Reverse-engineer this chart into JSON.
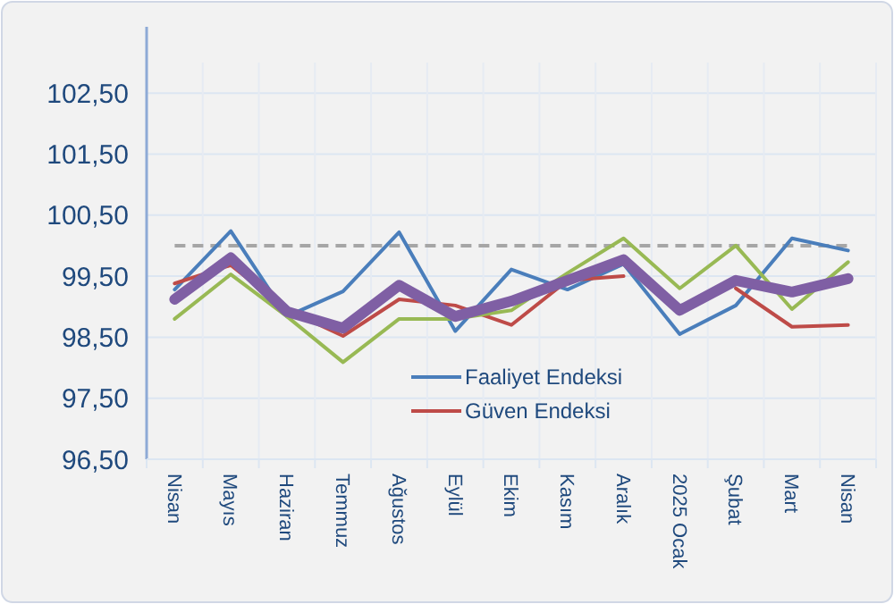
{
  "chart_data": {
    "type": "line",
    "categories": [
      "Nisan",
      "Mayıs",
      "Haziran",
      "Temmuz",
      "Ağustos",
      "Eylül",
      "Ekim",
      "Kasım",
      "Aralık",
      "2025 Ocak",
      "Şubat",
      "Mart",
      "Nisan"
    ],
    "series": [
      {
        "name": "Faaliyet Endeksi",
        "color": "#4a7ebb",
        "values": [
          99.28,
          100.24,
          98.84,
          99.25,
          100.22,
          98.6,
          99.61,
          99.28,
          99.7,
          98.55,
          99.02,
          100.12,
          99.92
        ]
      },
      {
        "name": "Güven Endeksi",
        "color": "#be4b48",
        "values": [
          99.38,
          99.68,
          98.95,
          98.52,
          99.12,
          99.02,
          98.7,
          99.43,
          99.5,
          null,
          99.3,
          98.67,
          98.7
        ]
      },
      {
        "color": "#98b954",
        "values": [
          98.8,
          99.53,
          98.84,
          98.09,
          98.8,
          98.8,
          98.94,
          99.55,
          100.12,
          99.3,
          100.0,
          98.96,
          99.73
        ]
      },
      {
        "color": "#7f5fa4",
        "values": [
          99.12,
          99.8,
          98.92,
          98.65,
          99.35,
          98.84,
          99.09,
          99.43,
          99.77,
          98.94,
          99.43,
          99.24,
          99.46
        ]
      }
    ],
    "ylim": [
      96.5,
      103
    ],
    "yticks": [
      {
        "value": 96.5,
        "label": "96,50"
      },
      {
        "value": 97.5,
        "label": "97,50"
      },
      {
        "value": 98.5,
        "label": "98,50"
      },
      {
        "value": 99.5,
        "label": "99,50"
      },
      {
        "value": 100.5,
        "label": "100,50"
      },
      {
        "value": 101.5,
        "label": "101,50"
      },
      {
        "value": 102.5,
        "label": "102,50"
      }
    ],
    "ref_lines": [
      {
        "axis": "y",
        "value": 100,
        "color": "#a6a6a6",
        "line_style": "dashed"
      }
    ],
    "grid": true,
    "legend": "bottom",
    "marker": "none",
    "line_style": "solid"
  }
}
